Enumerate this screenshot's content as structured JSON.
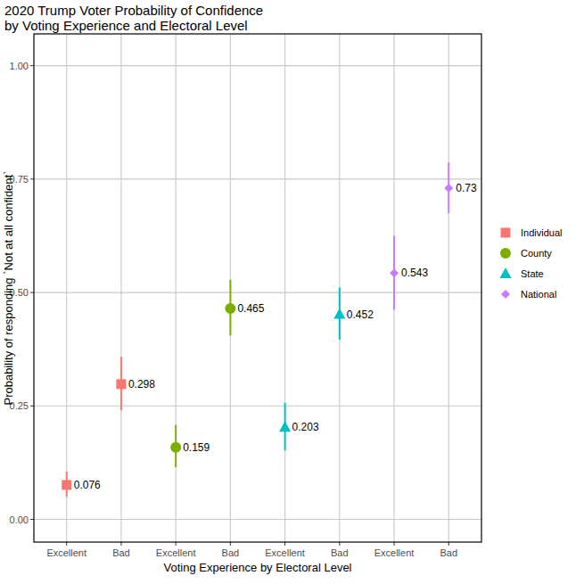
{
  "chart_data": {
    "type": "scatter",
    "title": "2020 Trump Voter Probability of Confidence\nby Voting Experience and Electoral Level",
    "x_label": "Voting Experience by Electoral Level",
    "y_label": "Probability of responding `Not at all confident`",
    "categories": [
      "Excellent",
      "Bad",
      "Excellent",
      "Bad",
      "Excellent",
      "Bad",
      "Excellent",
      "Bad"
    ],
    "series": [
      {
        "name": "Individual",
        "color": "#F8766D",
        "marker": "square",
        "values": [
          0.076,
          0.298,
          null,
          null,
          null,
          null,
          null,
          null
        ],
        "lower": [
          0.05,
          0.24,
          null,
          null,
          null,
          null,
          null,
          null
        ],
        "upper": [
          0.105,
          0.358,
          null,
          null,
          null,
          null,
          null,
          null
        ]
      },
      {
        "name": "County",
        "color": "#7CAE00",
        "marker": "circle",
        "values": [
          null,
          null,
          0.159,
          0.465,
          null,
          null,
          null,
          null
        ],
        "lower": [
          null,
          null,
          0.115,
          0.405,
          null,
          null,
          null,
          null
        ],
        "upper": [
          null,
          null,
          0.208,
          0.528,
          null,
          null,
          null,
          null
        ]
      },
      {
        "name": "State",
        "color": "#00BFC4",
        "marker": "triangle",
        "values": [
          null,
          null,
          null,
          null,
          0.203,
          0.452,
          null,
          null
        ],
        "lower": [
          null,
          null,
          null,
          null,
          0.152,
          0.396,
          null,
          null
        ],
        "upper": [
          null,
          null,
          null,
          null,
          0.257,
          0.511,
          null,
          null
        ]
      },
      {
        "name": "National",
        "color": "#C77CFF",
        "marker": "diamond",
        "values": [
          null,
          null,
          null,
          null,
          null,
          null,
          0.543,
          0.73
        ],
        "lower": [
          null,
          null,
          null,
          null,
          null,
          null,
          0.462,
          0.675
        ],
        "upper": [
          null,
          null,
          null,
          null,
          null,
          null,
          0.625,
          0.787
        ]
      }
    ],
    "ylim": [
      -0.05,
      1.07
    ],
    "yticks": [
      {
        "value": 0,
        "label": "0.00"
      },
      {
        "value": 0.25,
        "label": "0.25"
      },
      {
        "value": 0.5,
        "label": "0.50"
      },
      {
        "value": 0.75,
        "label": "0.75"
      },
      {
        "value": 1,
        "label": "1.00"
      }
    ],
    "grid": true,
    "legend": "right",
    "data_labels": true
  }
}
